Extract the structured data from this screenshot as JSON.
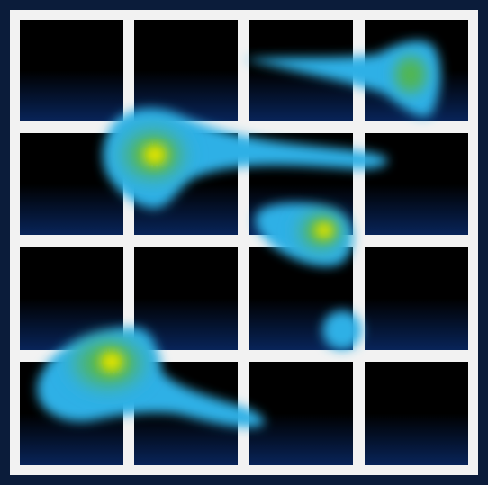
{
  "grid": {
    "rows": 4,
    "columns": 4
  },
  "colors": {
    "outer_background": "#0b1c3a",
    "frame_line": "#f2f2f2",
    "cell_top": "#000000",
    "cell_bottom": "#082459",
    "blob_outer": "#2fb0e6",
    "blob_mid": "#55b733",
    "blob_core": "#ffee00"
  },
  "icon": "heatmap-grid-blobs-icon",
  "blobs": [
    {
      "name": "top-right-comet-blob"
    },
    {
      "name": "upper-left-comet-blob"
    },
    {
      "name": "center-oval-blob"
    },
    {
      "name": "small-dot-blob"
    },
    {
      "name": "bottom-left-comet-blob"
    }
  ]
}
